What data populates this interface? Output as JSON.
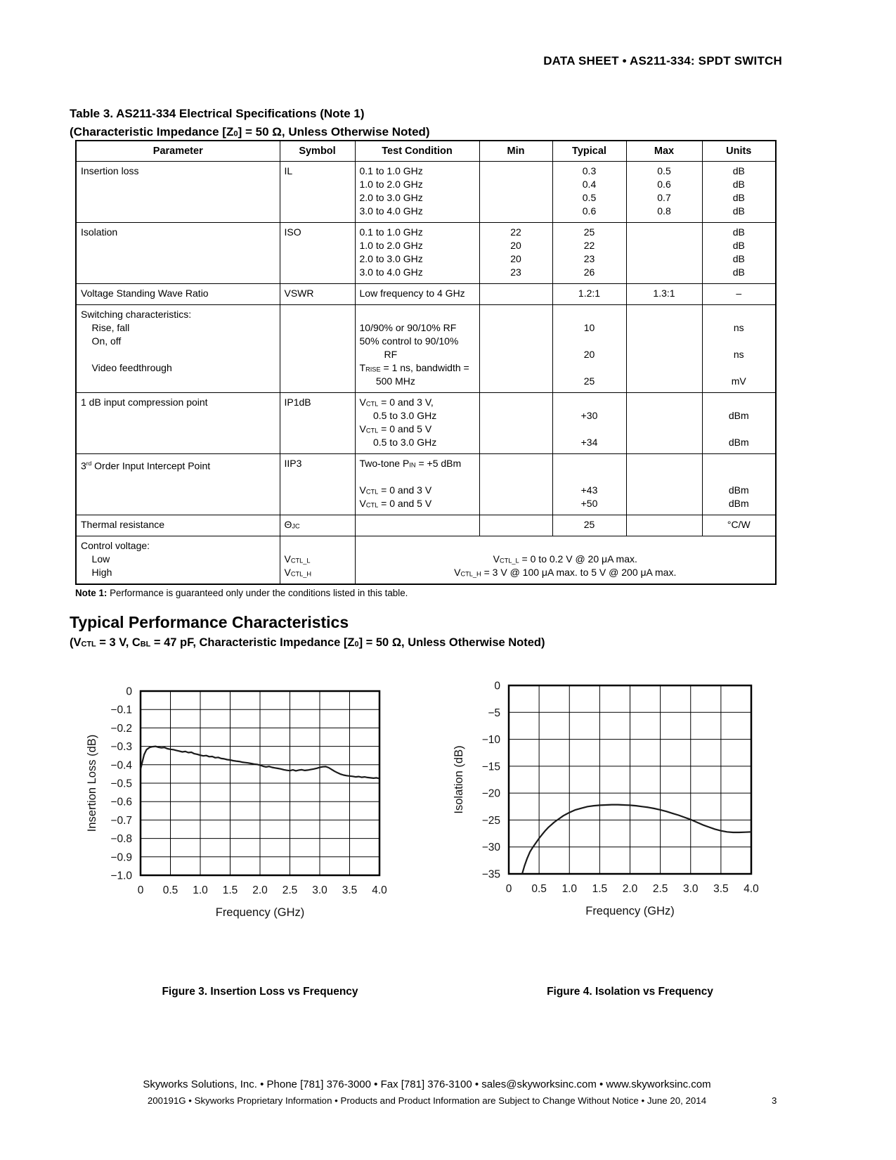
{
  "header": {
    "title": "DATA SHEET  •  AS211-334: SPDT SWITCH"
  },
  "table": {
    "title_line1": "Table 3. AS211-334 Electrical Specifications (Note 1)",
    "title_line2": "(Characteristic Impedance [Z~0~] = 50 Ω, Unless Otherwise Noted)",
    "columns": [
      "Parameter",
      "Symbol",
      "Test Condition",
      "Min",
      "Typical",
      "Max",
      "Units"
    ],
    "rows": [
      {
        "param": [
          "Insertion loss"
        ],
        "symbol": [
          "IL"
        ],
        "cond": [
          "0.1 to 1.0 GHz",
          "1.0 to 2.0 GHz",
          "2.0 to 3.0 GHz",
          "3.0 to 4.0 GHz"
        ],
        "min": [],
        "typ": [
          "0.3",
          "0.4",
          "0.5",
          "0.6"
        ],
        "max": [
          "0.5",
          "0.6",
          "0.7",
          "0.8"
        ],
        "units": [
          "dB",
          "dB",
          "dB",
          "dB"
        ]
      },
      {
        "param": [
          "Isolation"
        ],
        "symbol": [
          "ISO"
        ],
        "cond": [
          "0.1 to 1.0 GHz",
          "1.0 to 2.0 GHz",
          "2.0 to 3.0 GHz",
          "3.0 to 4.0 GHz"
        ],
        "min": [
          "22",
          "20",
          "20",
          "23"
        ],
        "typ": [
          "25",
          "22",
          "23",
          "26"
        ],
        "max": [],
        "units": [
          "dB",
          "dB",
          "dB",
          "dB"
        ]
      },
      {
        "param": [
          "Voltage Standing Wave Ratio"
        ],
        "symbol": [
          "VSWR"
        ],
        "cond": [
          "Low frequency to 4 GHz"
        ],
        "min": [],
        "typ": [
          "1.2:1"
        ],
        "max": [
          "1.3:1"
        ],
        "units": [
          "–"
        ]
      },
      {
        "param": [
          "Switching characteristics:",
          "    Rise, fall",
          "    On, off",
          "",
          "    Video feedthrough"
        ],
        "symbol": [],
        "cond": [
          "",
          "10/90% or 90/10% RF",
          "50% control to 90/10%",
          "         RF",
          "T~RISE~ = 1 ns, bandwidth =",
          "      500 MHz"
        ],
        "min": [],
        "typ": [
          "",
          "10",
          "",
          "20",
          "",
          "25"
        ],
        "max": [],
        "units": [
          "",
          "ns",
          "",
          "ns",
          "",
          "mV"
        ]
      },
      {
        "param": [
          "1 dB input compression point"
        ],
        "symbol": [
          "IP1dB"
        ],
        "cond": [
          "V~CTL~ = 0 and 3 V,",
          "     0.5 to 3.0 GHz",
          "V~CTL~ = 0 and 5 V",
          "     0.5 to 3.0 GHz"
        ],
        "min": [],
        "typ": [
          "",
          "+30",
          "",
          "+34"
        ],
        "max": [],
        "units": [
          "",
          "dBm",
          "",
          "dBm"
        ]
      },
      {
        "param": [
          "3^rd^ Order Input Intercept Point"
        ],
        "symbol": [
          "IIP3"
        ],
        "cond": [
          "Two-tone P~IN~ = +5 dBm",
          "",
          "V~CTL~ = 0 and 3 V",
          "V~CTL~ = 0 and 5 V"
        ],
        "min": [],
        "typ": [
          "",
          "",
          "+43",
          "+50"
        ],
        "max": [],
        "units": [
          "",
          "",
          "dBm",
          "dBm"
        ]
      },
      {
        "param": [
          "Thermal resistance"
        ],
        "symbol": [
          "Θ~JC~"
        ],
        "cond": [],
        "min": [],
        "typ": [
          "25"
        ],
        "max": [],
        "units": [
          "°C/W"
        ]
      },
      {
        "param": [
          "Control voltage:",
          "    Low",
          "    High"
        ],
        "symbol": [
          "",
          "V~CTL_L~",
          "V~CTL_H~"
        ],
        "merged": [
          "",
          "V~CTL_L~ = 0 to 0.2 V @ 20 μA max.",
          "V~CTL_H~ = 3 V @ 100 μA max. to 5 V @ 200 μA max."
        ]
      }
    ],
    "note_label": "Note 1:",
    "note_text": " Performance is guaranteed only under the conditions listed in this table."
  },
  "section": {
    "heading": "Typical Performance Characteristics",
    "subtitle": "(V~CTL~ = 3 V, C~BL~ = 47 pF, Characteristic Impedance [Z~0~] = 50 Ω, Unless Otherwise Noted)"
  },
  "chart_data": [
    {
      "type": "line",
      "caption": "Figure 3. Insertion Loss vs Frequency",
      "xlabel": "Frequency (GHz)",
      "ylabel": "Insertion Loss (dB)",
      "xlim": [
        0,
        4
      ],
      "ylim": [
        -1.0,
        0
      ],
      "grid": true,
      "xticks": [
        {
          "v": 0,
          "l": "0"
        },
        {
          "v": 0.5,
          "l": "0.5"
        },
        {
          "v": 1,
          "l": "1.0"
        },
        {
          "v": 1.5,
          "l": "1.5"
        },
        {
          "v": 2,
          "l": "2.0"
        },
        {
          "v": 2.5,
          "l": "2.5"
        },
        {
          "v": 3,
          "l": "3.0"
        },
        {
          "v": 3.5,
          "l": "3.5"
        },
        {
          "v": 4,
          "l": "4.0"
        }
      ],
      "yticks": [
        {
          "v": 0,
          "l": "0"
        },
        {
          "v": -0.1,
          "l": "−0.1"
        },
        {
          "v": -0.2,
          "l": "−0.2"
        },
        {
          "v": -0.3,
          "l": "−0.3"
        },
        {
          "v": -0.4,
          "l": "−0.4"
        },
        {
          "v": -0.5,
          "l": "−0.5"
        },
        {
          "v": -0.6,
          "l": "−0.6"
        },
        {
          "v": -0.7,
          "l": "−0.7"
        },
        {
          "v": -0.8,
          "l": "−0.8"
        },
        {
          "v": -0.9,
          "l": "−0.9"
        },
        {
          "v": -1.0,
          "l": "−1.0"
        }
      ],
      "points": [
        [
          0,
          -0.425
        ],
        [
          0.03,
          -0.385
        ],
        [
          0.06,
          -0.345
        ],
        [
          0.1,
          -0.318
        ],
        [
          0.15,
          -0.306
        ],
        [
          0.2,
          -0.302
        ],
        [
          0.25,
          -0.3
        ],
        [
          0.3,
          -0.305
        ],
        [
          0.35,
          -0.308
        ],
        [
          0.4,
          -0.306
        ],
        [
          0.45,
          -0.313
        ],
        [
          0.5,
          -0.316
        ],
        [
          0.55,
          -0.318
        ],
        [
          0.6,
          -0.322
        ],
        [
          0.65,
          -0.326
        ],
        [
          0.7,
          -0.33
        ],
        [
          0.75,
          -0.328
        ],
        [
          0.8,
          -0.334
        ],
        [
          0.85,
          -0.332
        ],
        [
          0.9,
          -0.34
        ],
        [
          0.95,
          -0.343
        ],
        [
          1.0,
          -0.348
        ],
        [
          1.05,
          -0.352
        ],
        [
          1.1,
          -0.35
        ],
        [
          1.15,
          -0.356
        ],
        [
          1.2,
          -0.355
        ],
        [
          1.25,
          -0.362
        ],
        [
          1.3,
          -0.36
        ],
        [
          1.35,
          -0.366
        ],
        [
          1.4,
          -0.368
        ],
        [
          1.45,
          -0.372
        ],
        [
          1.5,
          -0.374
        ],
        [
          1.55,
          -0.378
        ],
        [
          1.6,
          -0.38
        ],
        [
          1.65,
          -0.382
        ],
        [
          1.7,
          -0.386
        ],
        [
          1.75,
          -0.388
        ],
        [
          1.8,
          -0.39
        ],
        [
          1.85,
          -0.393
        ],
        [
          1.9,
          -0.396
        ],
        [
          1.95,
          -0.398
        ],
        [
          2.0,
          -0.402
        ],
        [
          2.05,
          -0.408
        ],
        [
          2.1,
          -0.412
        ],
        [
          2.15,
          -0.409
        ],
        [
          2.2,
          -0.414
        ],
        [
          2.25,
          -0.417
        ],
        [
          2.3,
          -0.42
        ],
        [
          2.35,
          -0.423
        ],
        [
          2.4,
          -0.427
        ],
        [
          2.45,
          -0.43
        ],
        [
          2.5,
          -0.432
        ],
        [
          2.55,
          -0.428
        ],
        [
          2.6,
          -0.433
        ],
        [
          2.65,
          -0.429
        ],
        [
          2.7,
          -0.427
        ],
        [
          2.75,
          -0.431
        ],
        [
          2.8,
          -0.429
        ],
        [
          2.85,
          -0.426
        ],
        [
          2.9,
          -0.423
        ],
        [
          2.95,
          -0.419
        ],
        [
          3.0,
          -0.414
        ],
        [
          3.05,
          -0.411
        ],
        [
          3.1,
          -0.41
        ],
        [
          3.15,
          -0.416
        ],
        [
          3.2,
          -0.426
        ],
        [
          3.25,
          -0.436
        ],
        [
          3.3,
          -0.444
        ],
        [
          3.35,
          -0.451
        ],
        [
          3.4,
          -0.456
        ],
        [
          3.45,
          -0.459
        ],
        [
          3.5,
          -0.461
        ],
        [
          3.55,
          -0.463
        ],
        [
          3.6,
          -0.466
        ],
        [
          3.65,
          -0.464
        ],
        [
          3.7,
          -0.468
        ],
        [
          3.75,
          -0.466
        ],
        [
          3.8,
          -0.469
        ],
        [
          3.85,
          -0.471
        ],
        [
          3.9,
          -0.473
        ],
        [
          3.95,
          -0.471
        ],
        [
          4.0,
          -0.475
        ]
      ]
    },
    {
      "type": "line",
      "caption": "Figure 4. Isolation vs Frequency",
      "xlabel": "Frequency (GHz)",
      "ylabel": "Isolation (dB)",
      "xlim": [
        0,
        4
      ],
      "ylim": [
        -35,
        0
      ],
      "grid": true,
      "xticks": [
        {
          "v": 0,
          "l": "0"
        },
        {
          "v": 0.5,
          "l": "0.5"
        },
        {
          "v": 1,
          "l": "1.0"
        },
        {
          "v": 1.5,
          "l": "1.5"
        },
        {
          "v": 2,
          "l": "2.0"
        },
        {
          "v": 2.5,
          "l": "2.5"
        },
        {
          "v": 3,
          "l": "3.0"
        },
        {
          "v": 3.5,
          "l": "3.5"
        },
        {
          "v": 4,
          "l": "4.0"
        }
      ],
      "yticks": [
        {
          "v": 0,
          "l": "0"
        },
        {
          "v": -5,
          "l": "−5"
        },
        {
          "v": -10,
          "l": "−10"
        },
        {
          "v": -15,
          "l": "−15"
        },
        {
          "v": -20,
          "l": "−20"
        },
        {
          "v": -25,
          "l": "−25"
        },
        {
          "v": -30,
          "l": "−30"
        },
        {
          "v": -35,
          "l": "−35"
        }
      ],
      "points": [
        [
          0.22,
          -35
        ],
        [
          0.26,
          -33.5
        ],
        [
          0.3,
          -32.2
        ],
        [
          0.35,
          -30.9
        ],
        [
          0.4,
          -30.0
        ],
        [
          0.45,
          -29.2
        ],
        [
          0.5,
          -28.4
        ],
        [
          0.55,
          -27.7
        ],
        [
          0.6,
          -27.0
        ],
        [
          0.65,
          -26.4
        ],
        [
          0.7,
          -25.9
        ],
        [
          0.75,
          -25.4
        ],
        [
          0.8,
          -25.0
        ],
        [
          0.85,
          -24.6
        ],
        [
          0.9,
          -24.2
        ],
        [
          0.95,
          -23.9
        ],
        [
          1.0,
          -23.6
        ],
        [
          1.1,
          -23.1
        ],
        [
          1.2,
          -22.8
        ],
        [
          1.3,
          -22.5
        ],
        [
          1.4,
          -22.35
        ],
        [
          1.5,
          -22.25
        ],
        [
          1.6,
          -22.2
        ],
        [
          1.7,
          -22.15
        ],
        [
          1.8,
          -22.15
        ],
        [
          1.9,
          -22.2
        ],
        [
          2.0,
          -22.25
        ],
        [
          2.1,
          -22.35
        ],
        [
          2.2,
          -22.5
        ],
        [
          2.3,
          -22.65
        ],
        [
          2.4,
          -22.85
        ],
        [
          2.5,
          -23.1
        ],
        [
          2.6,
          -23.4
        ],
        [
          2.7,
          -23.75
        ],
        [
          2.8,
          -24.1
        ],
        [
          2.9,
          -24.5
        ],
        [
          3.0,
          -24.9
        ],
        [
          3.1,
          -25.4
        ],
        [
          3.2,
          -25.9
        ],
        [
          3.3,
          -26.3
        ],
        [
          3.4,
          -26.7
        ],
        [
          3.5,
          -27.0
        ],
        [
          3.6,
          -27.2
        ],
        [
          3.7,
          -27.3
        ],
        [
          3.8,
          -27.3
        ],
        [
          3.9,
          -27.25
        ],
        [
          4.0,
          -27.2
        ]
      ]
    }
  ],
  "footer": {
    "line1": "Skyworks Solutions, Inc.  •  Phone [781] 376-3000  •  Fax [781] 376-3100  •  sales@skyworksinc.com  •  www.skyworksinc.com",
    "line2": "200191G  •  Skyworks Proprietary Information  •  Products and Product Information are Subject to Change Without Notice  •  June 20, 2014",
    "page": "3"
  }
}
